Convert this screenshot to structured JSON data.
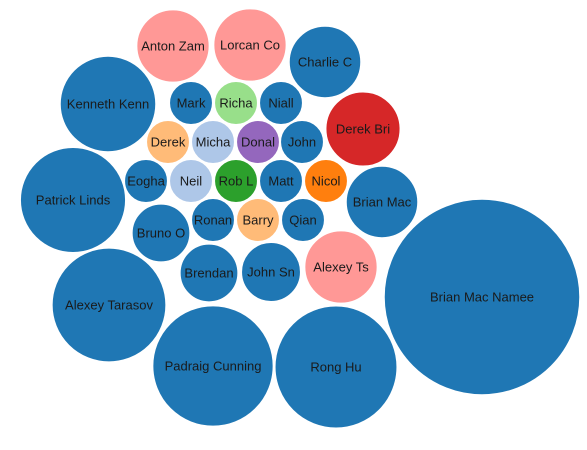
{
  "chart_data": {
    "type": "bubble",
    "palette": {
      "blue": "#1f77b4",
      "light_blue": "#aec7e8",
      "orange": "#ff7f0e",
      "light_orange": "#ffbb78",
      "green": "#2ca02c",
      "light_green": "#98df8a",
      "red": "#d62728",
      "pink": "#ff9896",
      "purple": "#9467bd"
    },
    "nodes": [
      {
        "label": "Brian Mac Namee",
        "value": 100,
        "color": "#1f77b4"
      },
      {
        "label": "Rong Hu",
        "value": 39,
        "color": "#1f77b4"
      },
      {
        "label": "Padraig Cunning",
        "value": 38,
        "color": "#1f77b4"
      },
      {
        "label": "Alexey Tarasov",
        "value": 34,
        "color": "#1f77b4"
      },
      {
        "label": "Patrick Linds",
        "value": 29,
        "color": "#1f77b4"
      },
      {
        "label": "Kenneth Kenn",
        "value": 24,
        "color": "#1f77b4"
      },
      {
        "label": "Derek Bri",
        "value": 14.5,
        "color": "#d62728"
      },
      {
        "label": "Anton Zam",
        "value": 13.8,
        "color": "#ff9896"
      },
      {
        "label": "Lorcan Co",
        "value": 13.8,
        "color": "#ff9896"
      },
      {
        "label": "Alexey Ts",
        "value": 13.8,
        "color": "#ff9896"
      },
      {
        "label": "Charlie C",
        "value": 13.5,
        "color": "#1f77b4"
      },
      {
        "label": "Brian Mac",
        "value": 13.5,
        "color": "#1f77b4"
      },
      {
        "label": "John Sn",
        "value": 9.2,
        "color": "#1f77b4"
      },
      {
        "label": "Brendan",
        "value": 8.8,
        "color": "#1f77b4"
      },
      {
        "label": "Bruno O",
        "value": 8.8,
        "color": "#1f77b4"
      },
      {
        "label": "Ronan",
        "value": 4.9,
        "color": "#1f77b4"
      },
      {
        "label": "Qian",
        "value": 4.9,
        "color": "#1f77b4"
      },
      {
        "label": "Barry",
        "value": 4.9,
        "color": "#ffbb78"
      },
      {
        "label": "Eogha",
        "value": 4.9,
        "color": "#1f77b4"
      },
      {
        "label": "Neil",
        "value": 4.9,
        "color": "#aec7e8"
      },
      {
        "label": "Rob L",
        "value": 4.9,
        "color": "#2ca02c"
      },
      {
        "label": "Matt",
        "value": 4.9,
        "color": "#1f77b4"
      },
      {
        "label": "Nicol",
        "value": 4.9,
        "color": "#ff7f0e"
      },
      {
        "label": "Derek",
        "value": 4.9,
        "color": "#ffbb78"
      },
      {
        "label": "Micha",
        "value": 4.9,
        "color": "#aec7e8"
      },
      {
        "label": "Donal",
        "value": 4.9,
        "color": "#9467bd"
      },
      {
        "label": "John",
        "value": 4.9,
        "color": "#1f77b4"
      },
      {
        "label": "Mark",
        "value": 4.9,
        "color": "#1f77b4"
      },
      {
        "label": "Richa",
        "value": 4.9,
        "color": "#98df8a"
      },
      {
        "label": "Niall",
        "value": 4.9,
        "color": "#1f77b4"
      }
    ]
  }
}
